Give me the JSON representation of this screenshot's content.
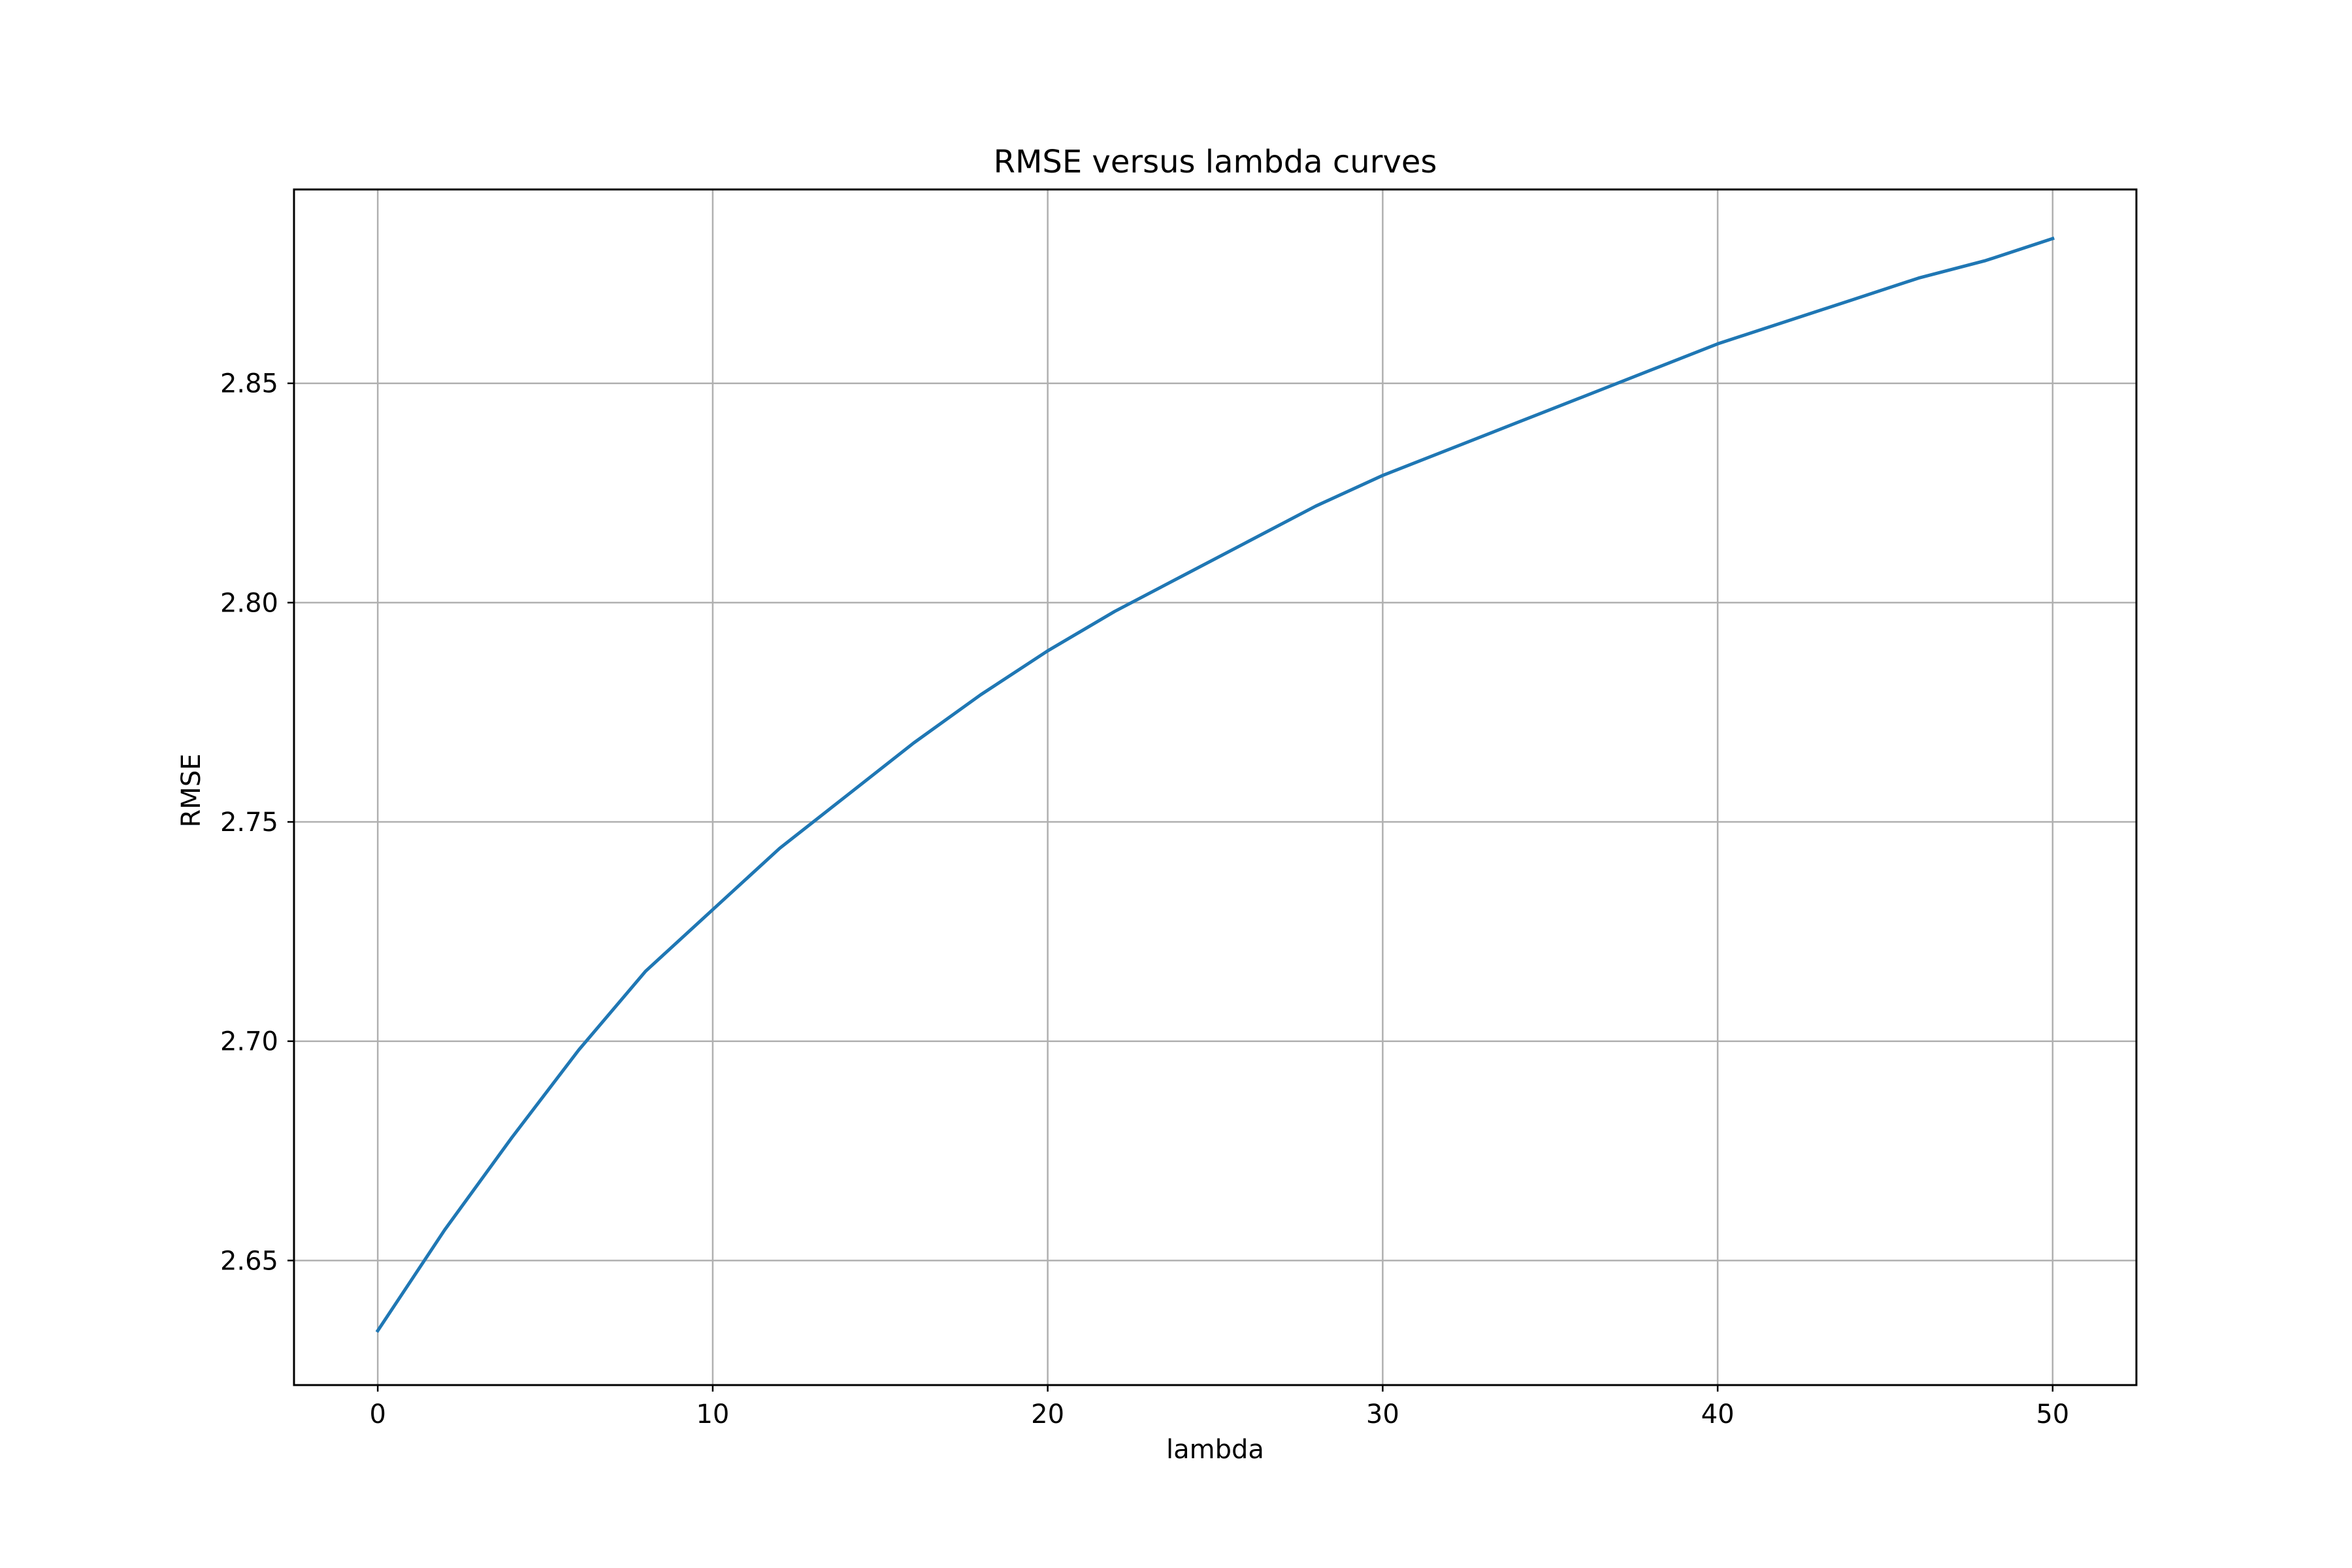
{
  "chart_data": {
    "type": "line",
    "title": "RMSE versus lambda curves",
    "xlabel": "lambda",
    "ylabel": "RMSE",
    "xlim": [
      -2.5,
      52.5
    ],
    "ylim": [
      2.6216,
      2.8942
    ],
    "xticks": [
      0,
      10,
      20,
      30,
      40,
      50
    ],
    "xtick_labels": [
      "0",
      "10",
      "20",
      "30",
      "40",
      "50"
    ],
    "yticks": [
      2.65,
      2.7,
      2.75,
      2.8,
      2.85
    ],
    "ytick_labels": [
      "2.65",
      "2.70",
      "2.75",
      "2.80",
      "2.85"
    ],
    "grid": true,
    "legend": "none",
    "series": [
      {
        "color": "#1f77b4",
        "x": [
          0,
          2,
          4,
          6,
          8,
          10,
          12,
          14,
          16,
          18,
          20,
          22,
          24,
          26,
          28,
          30,
          32,
          34,
          36,
          38,
          40,
          42,
          44,
          46,
          48,
          50
        ],
        "y": [
          2.634,
          2.657,
          2.678,
          2.698,
          2.716,
          2.73,
          2.744,
          2.756,
          2.768,
          2.779,
          2.789,
          2.798,
          2.806,
          2.814,
          2.822,
          2.829,
          2.835,
          2.841,
          2.847,
          2.853,
          2.859,
          2.864,
          2.869,
          2.874,
          2.878,
          2.883
        ]
      }
    ]
  }
}
